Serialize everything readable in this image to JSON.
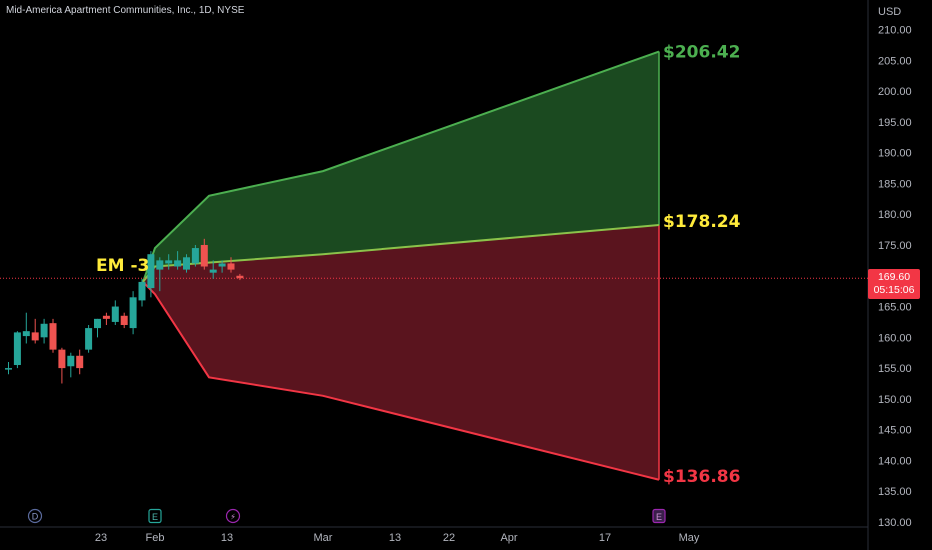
{
  "header": {
    "title": "Mid-America Apartment Communities, Inc., 1D, NYSE"
  },
  "price_axis": {
    "currency": "USD"
  },
  "current_price": {
    "value": "169.60",
    "countdown": "05:15:06"
  },
  "annotation": {
    "label": "EM -3"
  },
  "colors": {
    "up": "#26a69a",
    "down": "#ef5350",
    "upper_line": "#4caf50",
    "lower_line": "#f23645",
    "mid_line": "#8bc34a",
    "upper_fill": "#1b4a20",
    "lower_fill": "#5a141e",
    "label_green": "#4caf50",
    "label_yellow": "#ffeb3b",
    "label_red": "#f23645"
  },
  "event_markers": [
    {
      "letter": "D",
      "x": "Jan 12"
    },
    {
      "letter": "E",
      "x": "Feb 1"
    },
    {
      "letter": "⚡",
      "x": "Feb 14"
    },
    {
      "letter": "E",
      "x": "Apr 26"
    }
  ],
  "chart_data": {
    "type": "candlestick",
    "title": "Mid-America Apartment Communities, Inc., 1D, NYSE",
    "ylabel": "USD",
    "ylim": [
      130,
      212
    ],
    "y_ticks": [
      130,
      135,
      140,
      145,
      150,
      155,
      160,
      165,
      170,
      175,
      180,
      185,
      190,
      195,
      200,
      205,
      210
    ],
    "x_ticks": [
      "23",
      "Feb",
      "13",
      "Mar",
      "13",
      "22",
      "Apr",
      "17",
      "May"
    ],
    "candles": [
      {
        "date": "Jan 9",
        "o": 155.0,
        "h": 156.0,
        "l": 154.0,
        "c": 155.0
      },
      {
        "date": "Jan 10",
        "o": 155.5,
        "h": 161.0,
        "l": 155.0,
        "c": 160.8
      },
      {
        "date": "Jan 11",
        "o": 160.2,
        "h": 164.0,
        "l": 159.0,
        "c": 161.0
      },
      {
        "date": "Jan 12",
        "o": 160.8,
        "h": 163.0,
        "l": 159.0,
        "c": 159.5
      },
      {
        "date": "Jan 13",
        "o": 160.0,
        "h": 163.0,
        "l": 159.0,
        "c": 162.2
      },
      {
        "date": "Jan 17",
        "o": 162.3,
        "h": 163.0,
        "l": 157.5,
        "c": 158.0
      },
      {
        "date": "Jan 18",
        "o": 158.0,
        "h": 158.3,
        "l": 152.5,
        "c": 155.0
      },
      {
        "date": "Jan 19",
        "o": 155.3,
        "h": 157.5,
        "l": 153.5,
        "c": 157.0
      },
      {
        "date": "Jan 20",
        "o": 157.0,
        "h": 158.0,
        "l": 154.0,
        "c": 155.0
      },
      {
        "date": "Jan 23",
        "o": 158.0,
        "h": 162.0,
        "l": 157.5,
        "c": 161.5
      },
      {
        "date": "Jan 24",
        "o": 161.5,
        "h": 163.0,
        "l": 160.0,
        "c": 163.0
      },
      {
        "date": "Jan 25",
        "o": 163.5,
        "h": 164.0,
        "l": 162.0,
        "c": 163.0
      },
      {
        "date": "Jan 26",
        "o": 162.5,
        "h": 166.0,
        "l": 162.0,
        "c": 165.0
      },
      {
        "date": "Jan 27",
        "o": 163.5,
        "h": 164.0,
        "l": 161.5,
        "c": 162.0
      },
      {
        "date": "Jan 30",
        "o": 161.5,
        "h": 167.5,
        "l": 160.5,
        "c": 166.5
      },
      {
        "date": "Jan 31",
        "o": 166.0,
        "h": 169.5,
        "l": 165.0,
        "c": 169.0
      },
      {
        "date": "Feb 1",
        "o": 168.0,
        "h": 174.0,
        "l": 166.5,
        "c": 173.5
      },
      {
        "date": "Feb 2",
        "o": 171.0,
        "h": 173.0,
        "l": 167.5,
        "c": 172.5
      },
      {
        "date": "Feb 3",
        "o": 172.0,
        "h": 173.5,
        "l": 171.0,
        "c": 172.5
      },
      {
        "date": "Feb 6",
        "o": 171.5,
        "h": 174.0,
        "l": 171.0,
        "c": 172.5
      },
      {
        "date": "Feb 7",
        "o": 171.0,
        "h": 173.5,
        "l": 170.5,
        "c": 173.0
      },
      {
        "date": "Feb 8",
        "o": 172.0,
        "h": 175.0,
        "l": 171.5,
        "c": 174.5
      },
      {
        "date": "Feb 9",
        "o": 175.0,
        "h": 176.0,
        "l": 171.0,
        "c": 171.5
      },
      {
        "date": "Feb 10",
        "o": 170.5,
        "h": 172.5,
        "l": 169.5,
        "c": 171.0
      },
      {
        "date": "Feb 13",
        "o": 171.5,
        "h": 172.5,
        "l": 170.5,
        "c": 172.0
      },
      {
        "date": "Feb 14",
        "o": 172.0,
        "h": 173.0,
        "l": 170.5,
        "c": 171.0
      },
      {
        "date": "Feb 15",
        "o": 170.0,
        "h": 170.3,
        "l": 169.3,
        "c": 169.6
      }
    ],
    "expected_move": {
      "label": "EM -3",
      "upper": [
        [
          "Jan 30",
          169.0
        ],
        [
          "Feb 1",
          174.5
        ],
        [
          "Feb 10",
          183.0
        ],
        [
          "Mar 1",
          187.0
        ],
        [
          "Apr 26",
          206.42
        ]
      ],
      "middle": [
        [
          "Jan 30",
          169.0
        ],
        [
          "Feb 1",
          171.5
        ],
        [
          "Mar 1",
          173.5
        ],
        [
          "Apr 26",
          178.24
        ]
      ],
      "lower": [
        [
          "Jan 30",
          169.0
        ],
        [
          "Feb 1",
          167.0
        ],
        [
          "Feb 10",
          153.5
        ],
        [
          "Mar 1",
          150.5
        ],
        [
          "Apr 26",
          136.86
        ]
      ],
      "end_labels": {
        "upper": "$206.42",
        "middle": "$178.24",
        "lower": "$136.86"
      }
    },
    "current_price": 169.6
  }
}
